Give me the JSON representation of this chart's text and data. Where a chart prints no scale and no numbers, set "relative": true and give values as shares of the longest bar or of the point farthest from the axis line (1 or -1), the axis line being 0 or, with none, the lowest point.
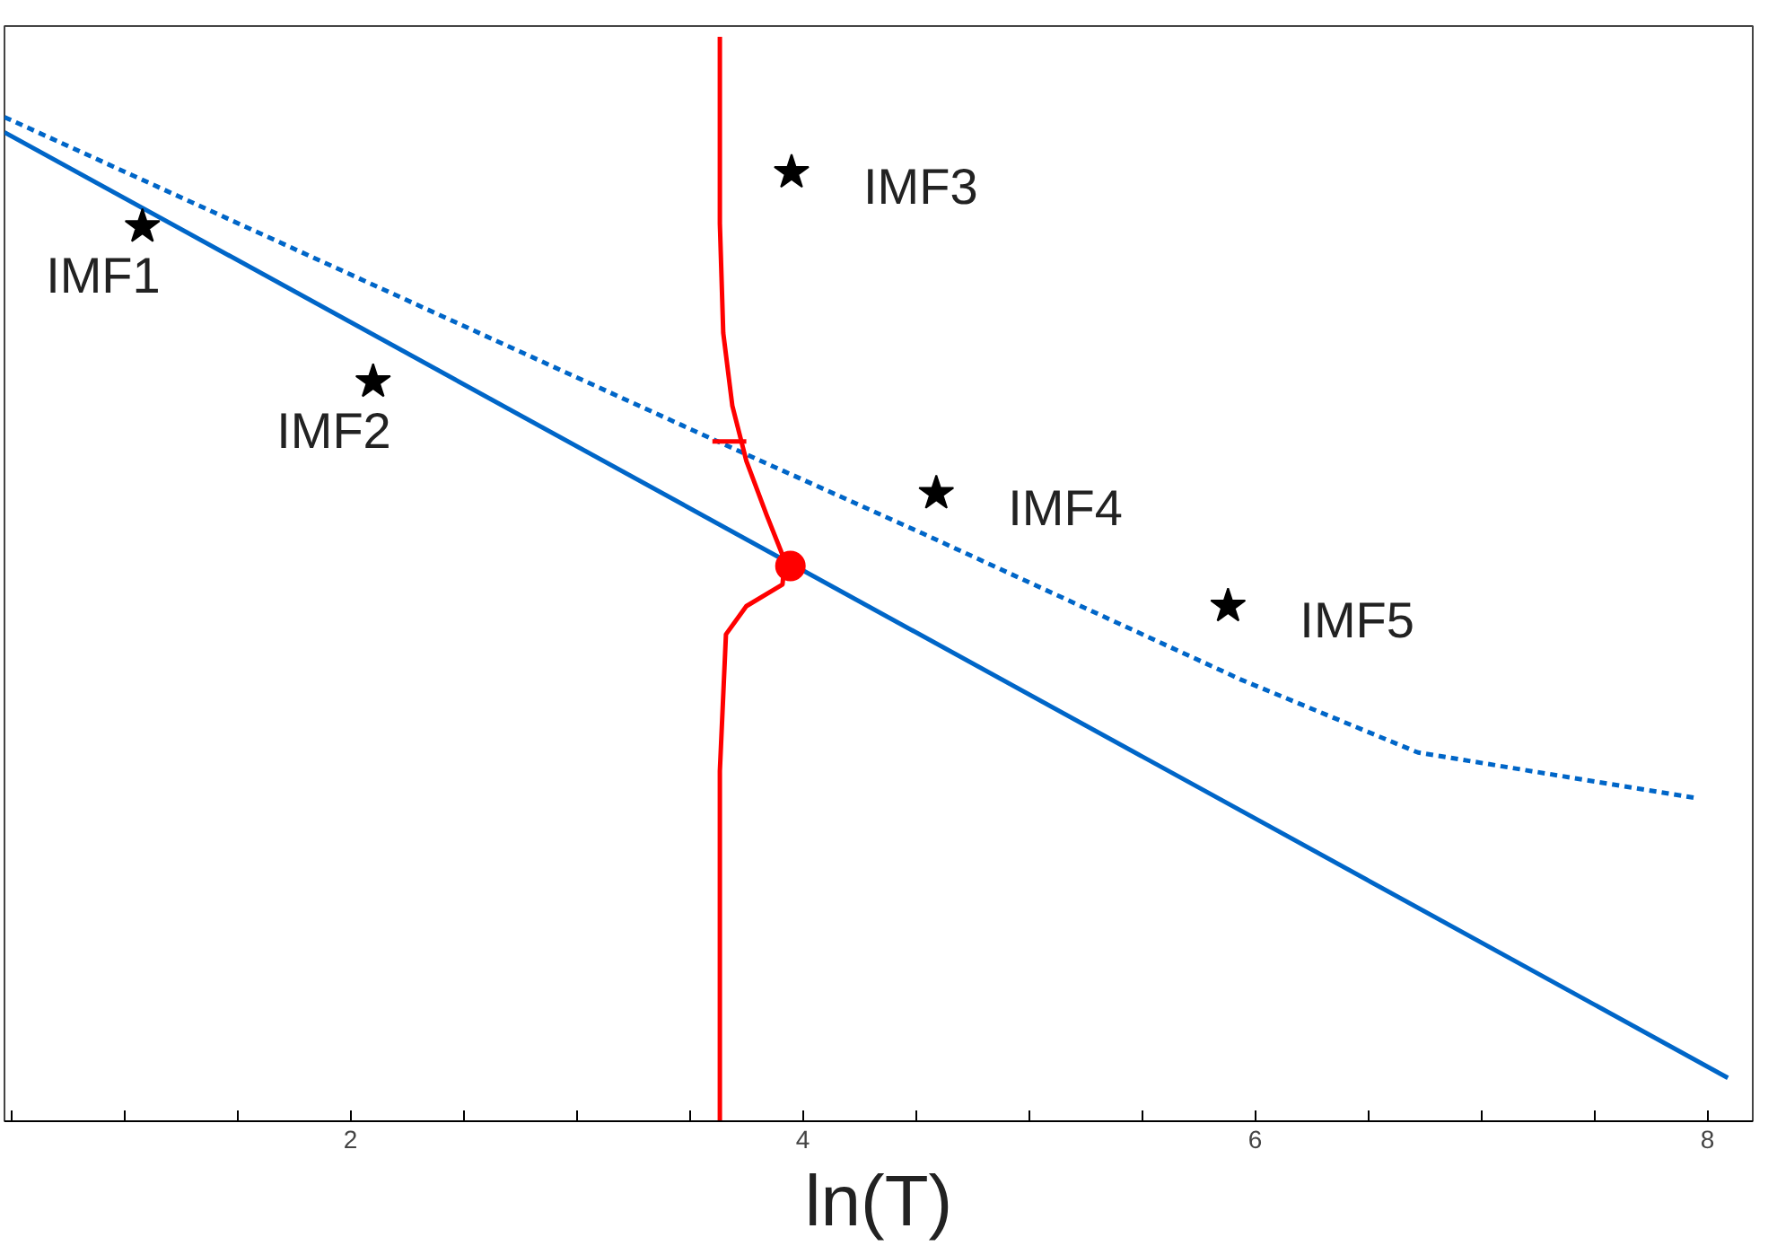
{
  "chart_data": {
    "type": "line",
    "relative": true,
    "xlabel": "ln(T)",
    "xlim": [
      0.47,
      8.2
    ],
    "xticks": [
      {
        "value": 0.5,
        "label": null
      },
      {
        "value": 1,
        "label": null
      },
      {
        "value": 1.5,
        "label": null
      },
      2,
      {
        "value": 2.5,
        "label": null
      },
      {
        "value": 3,
        "label": null
      },
      {
        "value": 3.5,
        "label": null
      },
      4,
      {
        "value": 4.5,
        "label": null
      },
      {
        "value": 5,
        "label": null
      },
      {
        "value": 5.5,
        "label": null
      },
      6,
      {
        "value": 6.5,
        "label": null
      },
      {
        "value": 7,
        "label": null
      },
      {
        "value": 7.5,
        "label": null
      },
      8
    ],
    "tick_labels": "x",
    "grid": false,
    "legend": false,
    "series": [
      {
        "color": "#0066c8",
        "line_style": "solid",
        "x": [
          0.47,
          8.09
        ],
        "values": [
          0.912,
          0.04
        ]
      },
      {
        "color": "#0066c8",
        "line_style": "dashed",
        "x": [
          0.47,
          2.03,
          3.59,
          4.53,
          5.94,
          6.72,
          7.95
        ],
        "values": [
          0.926,
          0.778,
          0.63,
          0.542,
          0.407,
          0.34,
          0.298
        ]
      },
      {
        "type": "scatter",
        "name": "IMF1",
        "color": "#000000",
        "marker": "star",
        "x": [
          1.08
        ],
        "values": [
          0.825
        ]
      },
      {
        "type": "scatter",
        "name": "IMF2",
        "color": "#000000",
        "marker": "star",
        "x": [
          2.1
        ],
        "values": [
          0.682
        ]
      },
      {
        "type": "scatter",
        "name": "IMF3",
        "color": "#000000",
        "marker": "star",
        "x": [
          3.95
        ],
        "values": [
          0.875
        ]
      },
      {
        "type": "scatter",
        "name": "IMF4",
        "color": "#000000",
        "marker": "star",
        "x": [
          4.59
        ],
        "values": [
          0.579
        ]
      },
      {
        "type": "scatter",
        "name": "IMF5",
        "color": "#000000",
        "marker": "star",
        "x": [
          5.88
        ],
        "values": [
          0.475
        ]
      },
      {
        "color": "#ff0000",
        "line_style": "solid",
        "x": [
          3.633,
          3.633,
          3.648,
          3.688,
          3.75,
          3.84,
          3.92,
          3.91,
          3.75,
          3.66,
          3.633,
          3.633
        ],
        "values": [
          1.0,
          0.828,
          0.727,
          0.66,
          0.609,
          0.559,
          0.517,
          0.495,
          0.475,
          0.449,
          0.323,
          0.0
        ]
      },
      {
        "color": "#ff0000",
        "line_style": "solid",
        "x": [
          3.6,
          3.75
        ],
        "values": [
          0.627,
          0.627
        ]
      },
      {
        "type": "scatter",
        "color": "#ff0000",
        "marker": "circle",
        "x": [
          3.945
        ],
        "values": [
          0.512
        ]
      }
    ]
  }
}
